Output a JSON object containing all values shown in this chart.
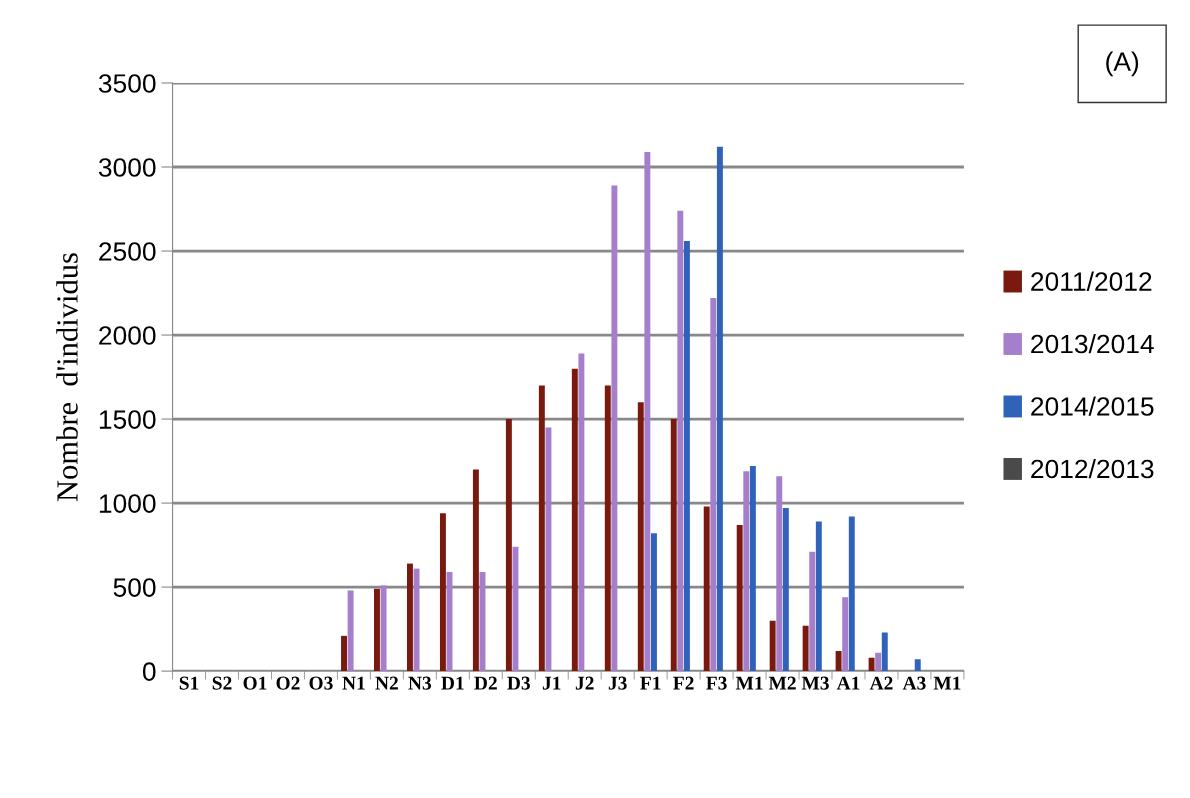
{
  "chart_data": {
    "type": "bar",
    "ylabel": "Nombre  d'individus",
    "annotations": [
      "(A)"
    ],
    "categories": [
      "S1",
      "S2",
      "O1",
      "O2",
      "O3",
      "N1",
      "N2",
      "N3",
      "D1",
      "D2",
      "D3",
      "J1",
      "J2",
      "J3",
      "F1",
      "F2",
      "F3",
      "M1",
      "M2",
      "M3",
      "A1",
      "A2",
      "A3",
      "M1"
    ],
    "series": [
      {
        "name": "2011/2012",
        "color": "#7a1a0e",
        "values": [
          null,
          null,
          null,
          null,
          null,
          210,
          490,
          640,
          940,
          1200,
          1500,
          1700,
          1800,
          1700,
          1600,
          1500,
          980,
          870,
          300,
          270,
          120,
          80,
          null,
          null
        ]
      },
      {
        "name": "2013/2014",
        "color": "#a57fcc",
        "values": [
          null,
          null,
          null,
          null,
          null,
          480,
          510,
          610,
          590,
          590,
          740,
          1450,
          1890,
          2890,
          3090,
          2740,
          2220,
          1190,
          1160,
          710,
          440,
          110,
          null,
          null
        ]
      },
      {
        "name": "2014/2015",
        "color": "#2f62b8",
        "values": [
          null,
          null,
          null,
          null,
          null,
          null,
          null,
          null,
          null,
          null,
          null,
          null,
          null,
          null,
          820,
          2560,
          3120,
          1220,
          970,
          890,
          920,
          230,
          70,
          null
        ]
      },
      {
        "name": "2012/2013",
        "color": "#4a4a4a",
        "values": [
          null,
          null,
          null,
          null,
          null,
          null,
          null,
          null,
          null,
          null,
          null,
          null,
          null,
          null,
          null,
          null,
          null,
          null,
          null,
          null,
          null,
          null,
          null,
          null
        ]
      }
    ],
    "ylim": [
      0,
      3500
    ],
    "yticks": [
      0,
      500,
      1000,
      1500,
      2000,
      2500,
      3000,
      3500
    ],
    "grid": "y",
    "legend": "right"
  }
}
